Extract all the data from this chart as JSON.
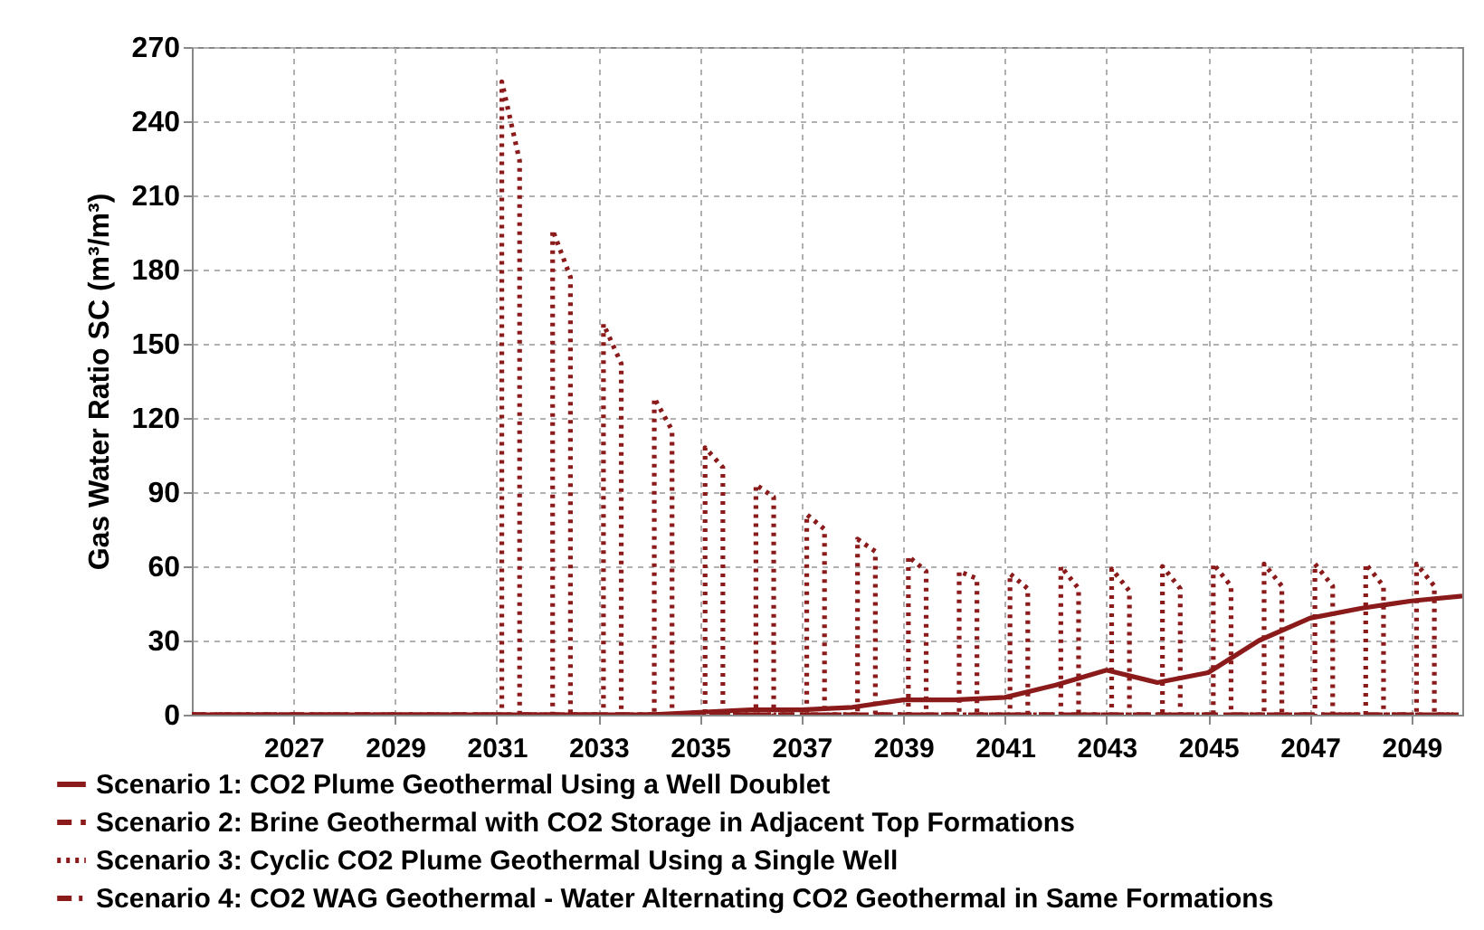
{
  "chart_data": {
    "type": "line",
    "ylabel": "Gas Water Ratio SC (m³/m³)",
    "xlim": [
      2025,
      2050
    ],
    "xticks": [
      2027,
      2029,
      2031,
      2033,
      2035,
      2037,
      2039,
      2041,
      2043,
      2045,
      2047,
      2049
    ],
    "ylim": [
      0,
      270
    ],
    "yticks": [
      0,
      30,
      60,
      90,
      120,
      150,
      180,
      210,
      240,
      270
    ],
    "grid": true,
    "legend": "bottom",
    "marker": "none",
    "series": [
      {
        "name": "Scenario 1: CO2 Plume Geothermal Using a Well Doublet",
        "color": "#8b1a1a",
        "line_style": "solid",
        "x": [
          2025,
          2026,
          2027,
          2028,
          2029,
          2030,
          2031,
          2032,
          2033,
          2034,
          2035,
          2036,
          2037,
          2038,
          2039,
          2040,
          2041,
          2042,
          2043,
          2044,
          2045,
          2046,
          2047,
          2048,
          2049,
          2050
        ],
        "values": [
          0,
          0,
          0,
          0,
          0,
          0,
          0,
          0,
          0,
          0,
          1,
          2,
          2,
          3,
          6,
          6,
          7,
          12,
          18,
          13,
          17,
          30,
          39,
          43,
          46,
          48
        ]
      },
      {
        "name": "Scenario 2: Brine Geothermal with CO2 Storage in Adjacent Top Formations",
        "color": "#8b1a1a",
        "line_style": "dashed",
        "x": [
          2025,
          2050
        ],
        "values": [
          0,
          0
        ]
      },
      {
        "name": "Scenario 3: Cyclic CO2 Plume Geothermal Using a Single Well",
        "color": "#8b1a1a",
        "line_style": "dotted",
        "x": [
          2025,
          2031.1,
          2031.1,
          2031.45,
          2031.45,
          2032.1,
          2032.1,
          2032.45,
          2032.45,
          2033.1,
          2033.1,
          2033.45,
          2033.45,
          2034.1,
          2034.1,
          2034.45,
          2034.45,
          2035.1,
          2035.1,
          2035.45,
          2035.45,
          2036.1,
          2036.1,
          2036.45,
          2036.45,
          2037.1,
          2037.1,
          2037.45,
          2037.45,
          2038.1,
          2038.1,
          2038.45,
          2038.45,
          2039.1,
          2039.1,
          2039.45,
          2039.45,
          2040.1,
          2040.1,
          2040.45,
          2040.45,
          2041.1,
          2041.1,
          2041.45,
          2041.45,
          2042.1,
          2042.1,
          2042.45,
          2042.45,
          2043.1,
          2043.1,
          2043.45,
          2043.45,
          2044.1,
          2044.1,
          2044.45,
          2044.45,
          2045.1,
          2045.1,
          2045.45,
          2045.45,
          2046.1,
          2046.1,
          2046.45,
          2046.45,
          2047.1,
          2047.1,
          2047.45,
          2047.45,
          2048.1,
          2048.1,
          2048.45,
          2048.45,
          2049.1,
          2049.1,
          2049.45,
          2049.45,
          2050
        ],
        "values": [
          0,
          0,
          256,
          224,
          0,
          0,
          196,
          177,
          0,
          0,
          158,
          142,
          0,
          0,
          128,
          115,
          0,
          0,
          108,
          100,
          0,
          0,
          93,
          88,
          0,
          0,
          81,
          75,
          0,
          0,
          71,
          66,
          0,
          0,
          64,
          58,
          0,
          0,
          58,
          55,
          0,
          0,
          57,
          51,
          0,
          0,
          60,
          51,
          0,
          0,
          59,
          50,
          0,
          0,
          60,
          51,
          0,
          0,
          61,
          52,
          0,
          0,
          61,
          52,
          0,
          0,
          61,
          52,
          0,
          0,
          61,
          52,
          0,
          0,
          61,
          52,
          0,
          0
        ]
      },
      {
        "name": "Scenario 4: CO2 WAG Geothermal - Water Alternating CO2 Geothermal in Same Formations",
        "color": "#8b1a1a",
        "line_style": "dashdot",
        "x": [
          2025,
          2050
        ],
        "values": [
          0,
          0
        ]
      }
    ]
  }
}
